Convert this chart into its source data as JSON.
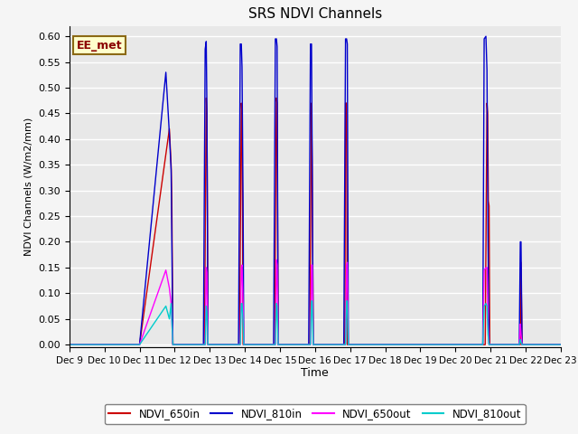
{
  "title": "SRS NDVI Channels",
  "ylabel": "NDVI Channels (W/m2/mm)",
  "xlabel": "Time",
  "annotation": "EE_met",
  "xlim": [
    0,
    14
  ],
  "ylim": [
    -0.005,
    0.62
  ],
  "yticks": [
    0.0,
    0.05,
    0.1,
    0.15,
    0.2,
    0.25,
    0.3,
    0.35,
    0.4,
    0.45,
    0.5,
    0.55,
    0.6
  ],
  "xtick_labels": [
    "Dec 9",
    "Dec 10",
    "Dec 11",
    "Dec 12",
    "Dec 13",
    "Dec 14",
    "Dec 15",
    "Dec 16",
    "Dec 17",
    "Dec 18",
    "Dec 19",
    "Dec 20",
    "Dec 21",
    "Dec 22",
    "Dec 23"
  ],
  "xtick_positions": [
    0,
    1,
    2,
    3,
    4,
    5,
    6,
    7,
    8,
    9,
    10,
    11,
    12,
    13,
    14
  ],
  "bg_color": "#e8e8e8",
  "grid_color": "#ffffff",
  "colors": {
    "NDVI_650in": "#cc0000",
    "NDVI_810in": "#0000cc",
    "NDVI_650out": "#ff00ff",
    "NDVI_810out": "#00cccc"
  },
  "segments": {
    "NDVI_650in": [
      [
        0.0,
        0.0
      ],
      [
        2.0,
        0.0
      ],
      [
        2.85,
        0.42
      ],
      [
        2.9,
        0.35
      ],
      [
        2.92,
        0.28
      ],
      [
        2.95,
        0.0
      ],
      [
        3.85,
        0.0
      ],
      [
        3.9,
        0.48
      ],
      [
        3.92,
        0.45
      ],
      [
        3.95,
        0.0
      ],
      [
        4.85,
        0.0
      ],
      [
        4.9,
        0.47
      ],
      [
        4.92,
        0.45
      ],
      [
        4.95,
        0.0
      ],
      [
        5.85,
        0.0
      ],
      [
        5.9,
        0.48
      ],
      [
        5.92,
        0.47
      ],
      [
        5.95,
        0.0
      ],
      [
        6.85,
        0.0
      ],
      [
        6.9,
        0.47
      ],
      [
        6.92,
        0.35
      ],
      [
        6.95,
        0.0
      ],
      [
        7.85,
        0.0
      ],
      [
        7.87,
        0.47
      ],
      [
        7.9,
        0.47
      ],
      [
        7.92,
        0.0
      ],
      [
        9.0,
        0.0
      ],
      [
        11.85,
        0.0
      ],
      [
        11.9,
        0.47
      ],
      [
        11.92,
        0.45
      ],
      [
        11.94,
        0.28
      ],
      [
        11.96,
        0.27
      ],
      [
        11.98,
        0.0
      ],
      [
        12.85,
        0.0
      ],
      [
        12.87,
        0.16
      ],
      [
        12.9,
        0.0
      ],
      [
        14.0,
        0.0
      ]
    ],
    "NDVI_810in": [
      [
        0.0,
        0.0
      ],
      [
        2.0,
        0.0
      ],
      [
        2.75,
        0.53
      ],
      [
        2.85,
        0.41
      ],
      [
        2.9,
        0.34
      ],
      [
        2.95,
        0.0
      ],
      [
        3.82,
        0.0
      ],
      [
        3.87,
        0.575
      ],
      [
        3.9,
        0.59
      ],
      [
        3.92,
        0.46
      ],
      [
        3.95,
        0.0
      ],
      [
        4.82,
        0.0
      ],
      [
        4.87,
        0.585
      ],
      [
        4.9,
        0.585
      ],
      [
        4.92,
        0.54
      ],
      [
        4.95,
        0.28
      ],
      [
        4.97,
        0.0
      ],
      [
        5.82,
        0.0
      ],
      [
        5.87,
        0.595
      ],
      [
        5.9,
        0.595
      ],
      [
        5.92,
        0.58
      ],
      [
        5.95,
        0.0
      ],
      [
        6.82,
        0.0
      ],
      [
        6.87,
        0.585
      ],
      [
        6.9,
        0.585
      ],
      [
        6.92,
        0.35
      ],
      [
        6.95,
        0.0
      ],
      [
        7.82,
        0.0
      ],
      [
        7.87,
        0.595
      ],
      [
        7.9,
        0.595
      ],
      [
        7.92,
        0.585
      ],
      [
        7.95,
        0.0
      ],
      [
        9.0,
        0.0
      ],
      [
        11.78,
        0.0
      ],
      [
        11.82,
        0.595
      ],
      [
        11.87,
        0.6
      ],
      [
        11.9,
        0.535
      ],
      [
        11.93,
        0.2
      ],
      [
        11.96,
        0.0
      ],
      [
        12.82,
        0.0
      ],
      [
        12.85,
        0.2
      ],
      [
        12.87,
        0.2
      ],
      [
        12.9,
        0.0
      ],
      [
        14.0,
        0.0
      ]
    ],
    "NDVI_650out": [
      [
        0.0,
        0.0
      ],
      [
        2.0,
        0.0
      ],
      [
        2.75,
        0.145
      ],
      [
        2.85,
        0.11
      ],
      [
        2.9,
        0.08
      ],
      [
        2.95,
        0.0
      ],
      [
        3.87,
        0.0
      ],
      [
        3.9,
        0.15
      ],
      [
        3.92,
        0.14
      ],
      [
        3.95,
        0.0
      ],
      [
        4.87,
        0.0
      ],
      [
        4.9,
        0.15
      ],
      [
        4.92,
        0.155
      ],
      [
        4.95,
        0.08
      ],
      [
        4.97,
        0.0
      ],
      [
        5.87,
        0.0
      ],
      [
        5.9,
        0.165
      ],
      [
        5.92,
        0.155
      ],
      [
        5.95,
        0.0
      ],
      [
        6.87,
        0.0
      ],
      [
        6.9,
        0.155
      ],
      [
        6.92,
        0.155
      ],
      [
        6.95,
        0.0
      ],
      [
        7.87,
        0.0
      ],
      [
        7.9,
        0.155
      ],
      [
        7.92,
        0.16
      ],
      [
        7.95,
        0.0
      ],
      [
        9.0,
        0.0
      ],
      [
        11.78,
        0.0
      ],
      [
        11.82,
        0.145
      ],
      [
        11.87,
        0.15
      ],
      [
        11.9,
        0.15
      ],
      [
        11.93,
        0.04
      ],
      [
        11.96,
        0.0
      ],
      [
        12.82,
        0.0
      ],
      [
        12.85,
        0.04
      ],
      [
        12.87,
        0.02
      ],
      [
        12.9,
        0.0
      ],
      [
        14.0,
        0.0
      ]
    ],
    "NDVI_810out": [
      [
        0.0,
        0.0
      ],
      [
        2.0,
        0.0
      ],
      [
        2.75,
        0.075
      ],
      [
        2.85,
        0.05
      ],
      [
        2.9,
        0.08
      ],
      [
        2.95,
        0.0
      ],
      [
        3.87,
        0.0
      ],
      [
        3.9,
        0.075
      ],
      [
        3.92,
        0.065
      ],
      [
        3.95,
        0.0
      ],
      [
        4.87,
        0.0
      ],
      [
        4.9,
        0.08
      ],
      [
        4.92,
        0.08
      ],
      [
        4.95,
        0.045
      ],
      [
        4.97,
        0.0
      ],
      [
        5.87,
        0.0
      ],
      [
        5.9,
        0.08
      ],
      [
        5.92,
        0.075
      ],
      [
        5.95,
        0.0
      ],
      [
        6.87,
        0.0
      ],
      [
        6.9,
        0.085
      ],
      [
        6.92,
        0.085
      ],
      [
        6.95,
        0.0
      ],
      [
        7.87,
        0.0
      ],
      [
        7.9,
        0.085
      ],
      [
        7.92,
        0.085
      ],
      [
        7.95,
        0.0
      ],
      [
        9.0,
        0.0
      ],
      [
        11.78,
        0.0
      ],
      [
        11.82,
        0.075
      ],
      [
        11.87,
        0.08
      ],
      [
        11.9,
        0.075
      ],
      [
        11.93,
        0.02
      ],
      [
        11.96,
        0.0
      ],
      [
        12.82,
        0.0
      ],
      [
        12.85,
        0.01
      ],
      [
        12.87,
        0.005
      ],
      [
        12.9,
        0.0
      ],
      [
        14.0,
        0.0
      ]
    ]
  }
}
